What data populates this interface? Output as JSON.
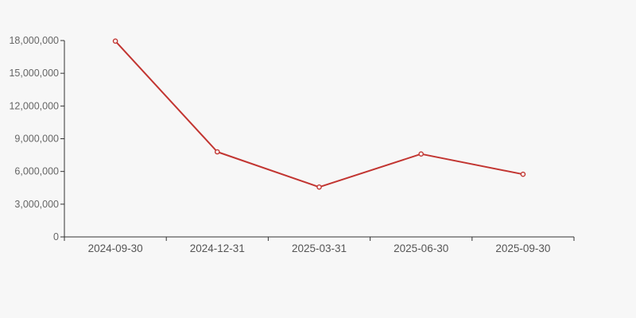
{
  "chart_data": {
    "type": "line",
    "title": "",
    "xlabel": "",
    "ylabel": "",
    "categories": [
      "2024-09-30",
      "2024-12-31",
      "2025-03-31",
      "2025-06-30",
      "2025-09-30"
    ],
    "values": [
      17950000,
      7800000,
      4570000,
      7600000,
      5740000
    ],
    "ylim": [
      0,
      18000000
    ],
    "ytick_interval": 3000000,
    "ytick_labels": [
      "0",
      "3,000,000",
      "6,000,000",
      "9,000,000",
      "12,000,000",
      "15,000,000",
      "18,000,000"
    ],
    "grid": "off",
    "legend": "none",
    "marker": "open-circle"
  },
  "colors": {
    "background": "#f7f7f7",
    "line": "#c23531",
    "marker_fill": "#f7f7f7",
    "axis": "#333333",
    "y_tick_label": "#666666",
    "x_tick_label": "#555555"
  }
}
